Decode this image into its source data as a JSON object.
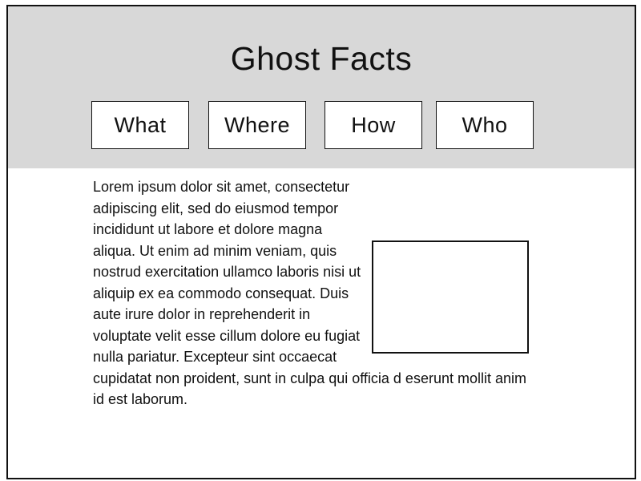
{
  "header": {
    "title": "Ghost Facts",
    "nav": [
      {
        "label": "What"
      },
      {
        "label": "Where"
      },
      {
        "label": "How"
      },
      {
        "label": "Who"
      }
    ]
  },
  "main": {
    "paragraph": "Lorem ipsum dolor sit amet, consectetur adipiscing elit, sed do eiusmod tempor incididunt ut labore et dolore magna aliqua. Ut enim ad minim veniam, quis nostrud exercitation ullamco laboris nisi ut aliquip ex ea commodo consequat. Duis aute irure dolor in reprehenderit in voluptate velit esse cillum dolore eu fugiat nulla pariatur. Excepteur sint occaecat cupidatat non proident, sunt in culpa qui officia d eserunt mollit anim id est laborum."
  }
}
